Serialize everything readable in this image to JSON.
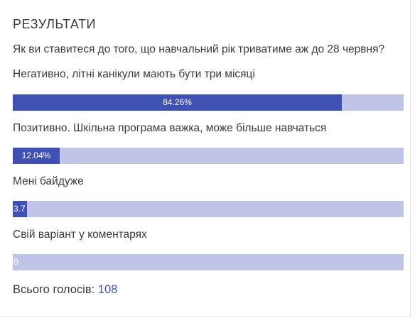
{
  "poll": {
    "title": "РЕЗУЛЬТАТИ",
    "question": "Як ви ставитеся до того, що навчальний рік триватиме аж до 28 червня?",
    "options": [
      {
        "label": "Негативно, літні канікули мають бути три місяці",
        "percent_text": "84.26%",
        "percent": 84.26
      },
      {
        "label": "Позитивно. Шкільна програма важка, може більше навчаться",
        "percent_text": "12.04%",
        "percent": 12.04
      },
      {
        "label": "Мені байдуже",
        "percent_text": "3.7",
        "percent": 3.7
      },
      {
        "label": "Свій варіант у коментарях",
        "percent_text": "0",
        "percent": 0
      }
    ],
    "total_label": "Всього голосів:",
    "total_value": "108"
  },
  "colors": {
    "bar_fill": "#3f51b5",
    "bar_track": "#c1c4e9",
    "accent_text": "#3f51b5"
  }
}
